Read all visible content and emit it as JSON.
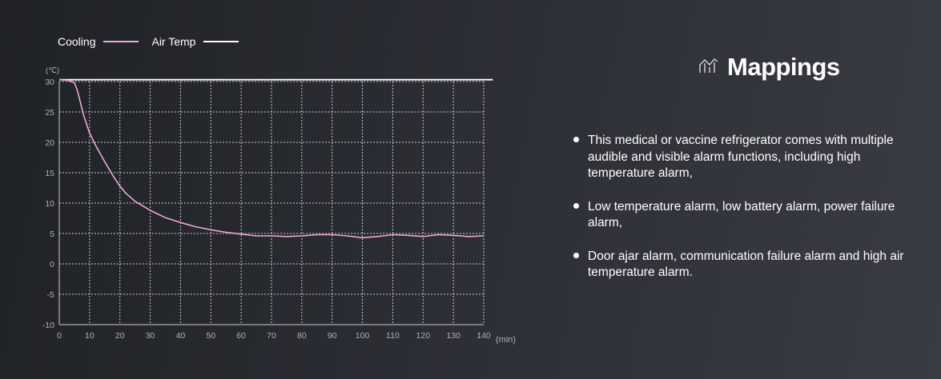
{
  "legend": {
    "cooling_label": "Cooling",
    "airtemp_label": "Air Temp"
  },
  "heading": {
    "icon": "chart-icon",
    "title": "Mappings"
  },
  "bullets": [
    "This medical or vaccine refrigerator comes with multiple audible and visible alarm functions, including high temperature alarm,",
    "Low temperature alarm, low battery alarm, power failure alarm,",
    "Door ajar alarm, communication failure alarm and high air temperature alarm."
  ],
  "colors": {
    "cooling": "#f0a6d8",
    "air_temp": "#ffffff",
    "grid": "#c8cad0",
    "axis_text": "#aeb1b8",
    "background": "#2a2d33"
  },
  "chart_data": {
    "type": "line",
    "title": "",
    "xlabel": "(min)",
    "ylabel": "(℃)",
    "xlim": [
      0,
      140
    ],
    "ylim": [
      -10,
      30
    ],
    "x_ticks": [
      0,
      10,
      20,
      30,
      40,
      50,
      60,
      70,
      80,
      90,
      100,
      110,
      120,
      130,
      140
    ],
    "y_ticks": [
      30,
      25,
      20,
      15,
      10,
      5,
      0,
      -5,
      -10
    ],
    "grid": true,
    "legend_position": "top-left",
    "series": [
      {
        "name": "Cooling",
        "x": [
          0,
          3,
          5,
          6,
          7,
          8,
          9,
          10,
          12,
          15,
          18,
          20,
          22,
          25,
          30,
          35,
          40,
          45,
          50,
          55,
          60,
          65,
          70,
          75,
          80,
          85,
          90,
          95,
          100,
          105,
          110,
          115,
          120,
          125,
          130,
          135,
          140
        ],
        "y": [
          30.3,
          30.2,
          29.8,
          28.5,
          26.5,
          24.5,
          23,
          21.5,
          19.5,
          16.8,
          14.3,
          12.8,
          11.6,
          10.3,
          8.8,
          7.6,
          6.8,
          6.1,
          5.6,
          5.2,
          4.9,
          4.6,
          4.6,
          4.5,
          4.6,
          4.8,
          4.8,
          4.6,
          4.3,
          4.5,
          4.8,
          4.7,
          4.5,
          4.8,
          4.7,
          4.5,
          4.6
        ]
      },
      {
        "name": "Air Temp",
        "x": [
          0,
          143
        ],
        "y": [
          30.3,
          30.3
        ]
      }
    ]
  }
}
